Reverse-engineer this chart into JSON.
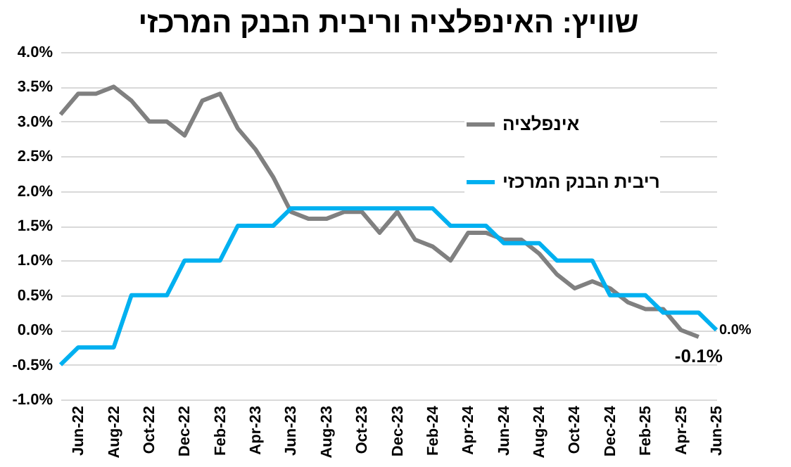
{
  "chart_data": {
    "type": "line",
    "title": "שוויץ: האינפלציה וריבית הבנק המרכזי",
    "categories": [
      null,
      "Jun-22",
      null,
      "Aug-22",
      null,
      "Oct-22",
      null,
      "Dec-22",
      null,
      "Feb-23",
      null,
      "Apr-23",
      null,
      "Jun-23",
      null,
      "Aug-23",
      null,
      "Oct-23",
      null,
      "Dec-23",
      null,
      "Feb-24",
      null,
      "Apr-24",
      null,
      "Jun-24",
      null,
      "Aug-24",
      null,
      "Oct-24",
      null,
      "Dec-24",
      null,
      "Feb-25",
      null,
      "Apr-25",
      null,
      "Jun-25"
    ],
    "series": [
      {
        "name": "אינפלציה",
        "color": "#808080",
        "values": [
          3.1,
          3.4,
          3.4,
          3.5,
          3.3,
          3.0,
          3.0,
          2.8,
          3.3,
          3.4,
          2.9,
          2.6,
          2.2,
          1.7,
          1.6,
          1.6,
          1.7,
          1.7,
          1.4,
          1.7,
          1.3,
          1.2,
          1.0,
          1.4,
          1.4,
          1.3,
          1.3,
          1.1,
          0.8,
          0.6,
          0.7,
          0.6,
          0.4,
          0.3,
          0.3,
          0.0,
          -0.1,
          null
        ],
        "value_labels": [
          null,
          null,
          null,
          null,
          null,
          null,
          null,
          null,
          null,
          null,
          null,
          null,
          null,
          null,
          null,
          null,
          null,
          null,
          null,
          null,
          null,
          null,
          null,
          null,
          null,
          null,
          null,
          null,
          null,
          null,
          null,
          null,
          null,
          null,
          null,
          null,
          "-0.1%",
          null
        ]
      },
      {
        "name": "ריבית הבנק המרכזי",
        "color": "#00b0f0",
        "values": [
          -0.5,
          -0.25,
          -0.25,
          -0.25,
          0.5,
          0.5,
          0.5,
          1.0,
          1.0,
          1.0,
          1.5,
          1.5,
          1.5,
          1.75,
          1.75,
          1.75,
          1.75,
          1.75,
          1.75,
          1.75,
          1.75,
          1.75,
          1.5,
          1.5,
          1.5,
          1.25,
          1.25,
          1.25,
          1.0,
          1.0,
          1.0,
          0.5,
          0.5,
          0.5,
          0.25,
          0.25,
          0.25,
          0.0
        ],
        "value_labels": [
          null,
          null,
          null,
          null,
          null,
          null,
          null,
          null,
          null,
          null,
          null,
          null,
          null,
          null,
          null,
          null,
          null,
          null,
          null,
          null,
          null,
          null,
          null,
          null,
          null,
          null,
          null,
          null,
          null,
          null,
          null,
          null,
          null,
          null,
          null,
          null,
          null,
          "0.0%"
        ]
      }
    ],
    "ylim": [
      -1.0,
      4.0
    ],
    "yticks": [
      {
        "value": -1.0,
        "label": "-1.0%"
      },
      {
        "value": -0.5,
        "label": "-0.5%"
      },
      {
        "value": 0.0,
        "label": "0.0%"
      },
      {
        "value": 0.5,
        "label": "0.5%"
      },
      {
        "value": 1.0,
        "label": "1.0%"
      },
      {
        "value": 1.5,
        "label": "1.5%"
      },
      {
        "value": 2.0,
        "label": "2.0%"
      },
      {
        "value": 2.5,
        "label": "2.5%"
      },
      {
        "value": 3.0,
        "label": "3.0%"
      },
      {
        "value": 3.5,
        "label": "3.5%"
      },
      {
        "value": 4.0,
        "label": "4.0%"
      }
    ],
    "grid": "y",
    "legend": "top right",
    "marker": "none",
    "line_style": "solid"
  }
}
